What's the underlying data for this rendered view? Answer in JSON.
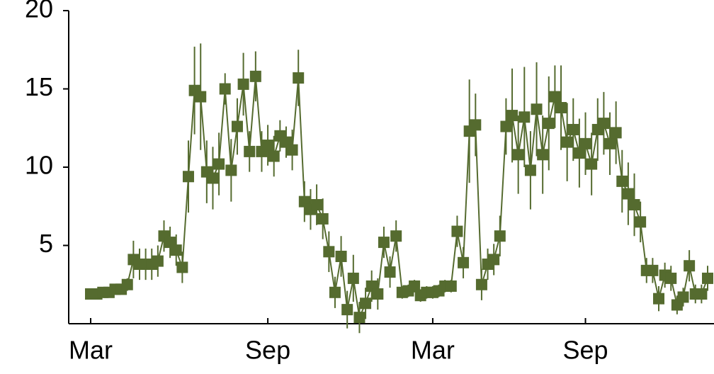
{
  "chart_data": {
    "type": "line",
    "color": "#556b2f",
    "categories": [
      "Mar",
      null,
      null,
      null,
      null,
      null,
      null,
      null,
      null,
      null,
      null,
      null,
      null,
      null,
      null,
      null,
      null,
      null,
      null,
      null,
      null,
      null,
      null,
      null,
      null,
      null,
      null,
      null,
      null,
      "Sep",
      null,
      null,
      null,
      null,
      null,
      null,
      null,
      null,
      null,
      null,
      null,
      null,
      null,
      null,
      null,
      null,
      null,
      null,
      null,
      null,
      null,
      null,
      null,
      null,
      null,
      null,
      "Mar",
      null,
      null,
      null,
      null,
      null,
      null,
      null,
      null,
      null,
      null,
      null,
      null,
      null,
      null,
      null,
      null,
      null,
      null,
      null,
      null,
      null,
      null,
      null,
      null,
      "Sep",
      null,
      null,
      null,
      null,
      null,
      null,
      null,
      null,
      null,
      null,
      null,
      null,
      null,
      null,
      null,
      null,
      null,
      null,
      null,
      null
    ],
    "values": [
      1.9,
      1.9,
      2.0,
      2.0,
      2.2,
      2.2,
      2.5,
      4.1,
      3.8,
      3.8,
      3.8,
      4.0,
      5.6,
      5.2,
      4.7,
      3.6,
      9.4,
      14.9,
      14.5,
      9.7,
      9.3,
      10.2,
      15.0,
      9.8,
      12.6,
      15.3,
      11.0,
      15.8,
      11.0,
      11.4,
      10.7,
      12.0,
      11.6,
      11.1,
      15.7,
      7.8,
      7.3,
      7.6,
      6.7,
      4.6,
      2.0,
      4.3,
      0.9,
      2.9,
      0.4,
      1.3,
      2.4,
      1.9,
      5.2,
      3.3,
      5.6,
      2.0,
      2.1,
      2.4,
      1.8,
      2.0,
      2.0,
      2.1,
      2.4,
      2.4,
      5.9,
      3.9,
      12.3,
      12.7,
      2.5,
      3.8,
      4.1,
      5.6,
      12.6,
      13.3,
      10.8,
      13.2,
      9.8,
      13.7,
      10.8,
      12.8,
      14.5,
      13.8,
      11.6,
      12.4,
      10.9,
      11.5,
      10.2,
      12.4,
      12.8,
      11.5,
      12.2,
      9.1,
      8.3,
      7.6,
      6.5,
      3.4,
      3.4,
      1.6,
      3.1,
      2.9,
      1.2,
      1.7,
      3.7,
      1.9,
      1.9,
      2.9
    ],
    "errors": [
      0.3,
      0.3,
      0.3,
      0.3,
      0.3,
      0.3,
      0.4,
      1.2,
      1.0,
      1.0,
      1.0,
      1.0,
      1.0,
      1.0,
      1.0,
      1.0,
      2.3,
      2.8,
      3.4,
      2.0,
      2.0,
      2.0,
      1.0,
      2.0,
      1.8,
      2.0,
      1.3,
      1.6,
      1.3,
      1.3,
      1.3,
      1.0,
      1.0,
      1.3,
      1.8,
      1.3,
      1.3,
      1.3,
      1.3,
      1.3,
      1.0,
      1.3,
      1.2,
      1.5,
      1.0,
      1.0,
      1.0,
      1.0,
      1.0,
      1.0,
      1.0,
      0.4,
      0.4,
      0.4,
      0.4,
      0.4,
      0.4,
      0.4,
      0.4,
      0.4,
      1.0,
      1.0,
      3.3,
      2.0,
      1.0,
      1.0,
      1.0,
      1.3,
      1.8,
      3.0,
      2.5,
      3.2,
      2.5,
      3.0,
      2.5,
      3.0,
      2.0,
      2.7,
      2.5,
      2.0,
      2.2,
      2.0,
      2.0,
      2.0,
      2.0,
      2.0,
      2.0,
      2.0,
      2.0,
      2.0,
      1.3,
      0.8,
      0.8,
      0.8,
      0.8,
      0.8,
      0.6,
      0.6,
      1.0,
      0.6,
      0.6,
      0.8
    ],
    "ylim": [
      0,
      20
    ],
    "yticks": [
      5,
      10,
      15,
      20
    ]
  }
}
